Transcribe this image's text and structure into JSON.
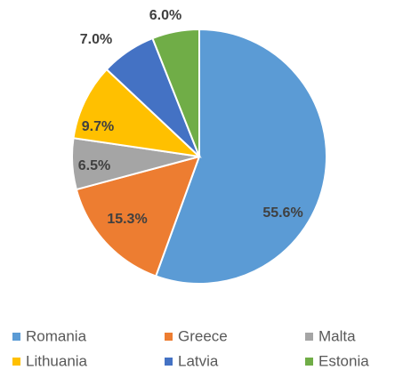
{
  "chart_data": {
    "type": "pie",
    "categories": [
      "Romania",
      "Greece",
      "Malta",
      "Lithuania",
      "Latvia",
      "Estonia"
    ],
    "values": [
      55.6,
      15.3,
      6.5,
      9.7,
      7.0,
      6.0
    ],
    "value_labels": [
      "55.6%",
      "15.3%",
      "6.5%",
      "9.7%",
      "7.0%",
      "6.0%"
    ],
    "colors": [
      "#5b9bd5",
      "#ed7d31",
      "#a5a5a5",
      "#ffc000",
      "#4472c4",
      "#70ad47"
    ],
    "legend": "bottom"
  }
}
